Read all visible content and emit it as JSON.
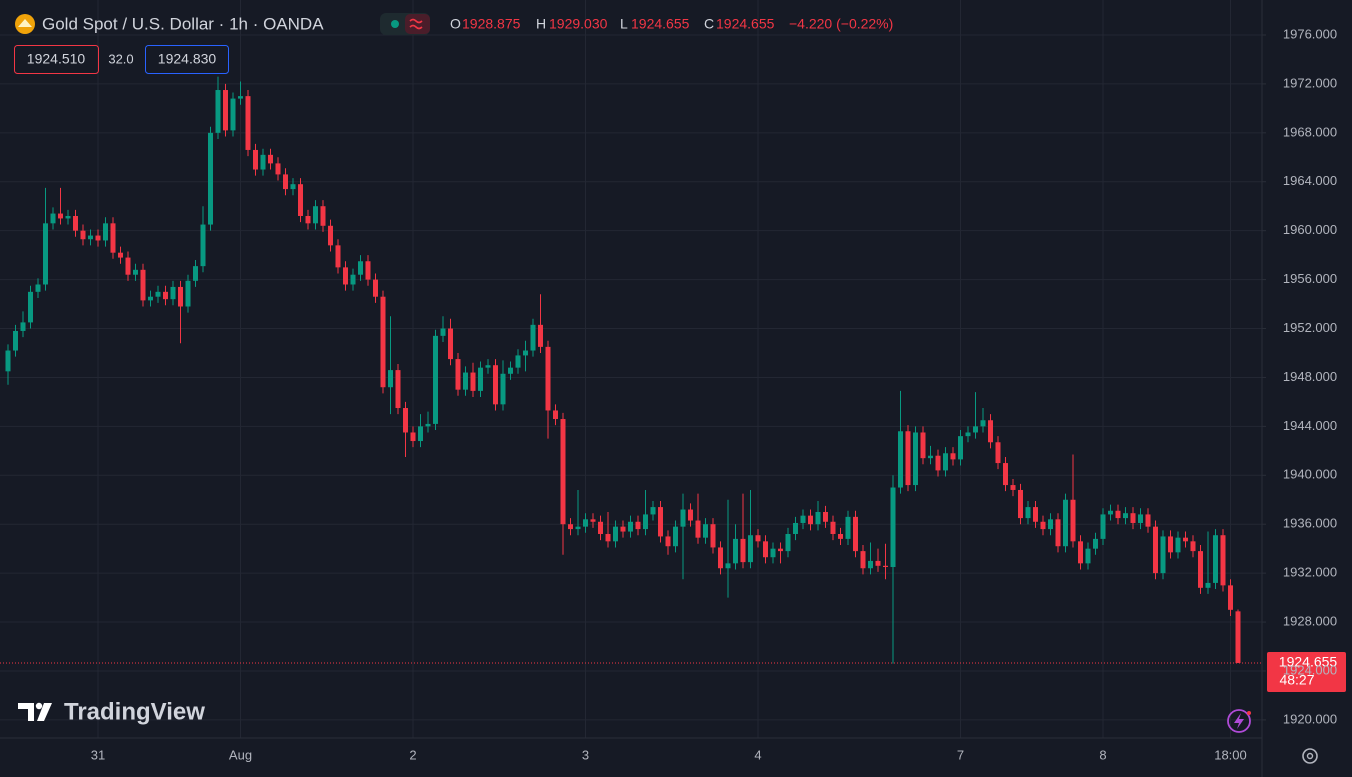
{
  "header": {
    "title": "Gold Spot / U.S. Dollar · 1h · OANDA",
    "ohlc": [
      {
        "key": "O",
        "value": "1928.875"
      },
      {
        "key": "H",
        "value": "1929.030"
      },
      {
        "key": "L",
        "value": "1924.655"
      },
      {
        "key": "C",
        "value": "1924.655"
      }
    ],
    "change": "−4.220 (−0.22%)",
    "sell": "1924.510",
    "spread": "32.0",
    "buy": "1924.830"
  },
  "price_label": {
    "price": "1924.655",
    "countdown": "48:27"
  },
  "logo": "TradingView",
  "chart_data": {
    "type": "candlestick",
    "up_color": "#089981",
    "down_color": "#f23645",
    "grid": true,
    "ylim": [
      1918.52,
      1978.86
    ],
    "yticks": [
      {
        "value": 1920,
        "label": "1920.000"
      },
      {
        "value": 1924,
        "label": "1924.000"
      },
      {
        "value": 1928,
        "label": "1928.000"
      },
      {
        "value": 1932,
        "label": "1932.000"
      },
      {
        "value": 1936,
        "label": "1936.000"
      },
      {
        "value": 1940,
        "label": "1940.000"
      },
      {
        "value": 1944,
        "label": "1944.000"
      },
      {
        "value": 1948,
        "label": "1948.000"
      },
      {
        "value": 1952,
        "label": "1952.000"
      },
      {
        "value": 1956,
        "label": "1956.000"
      },
      {
        "value": 1960,
        "label": "1960.000"
      },
      {
        "value": 1964,
        "label": "1964.000"
      },
      {
        "value": 1968,
        "label": "1968.000"
      },
      {
        "value": 1972,
        "label": "1972.000"
      },
      {
        "value": 1976,
        "label": "1976.000"
      }
    ],
    "last_value": 1924.655,
    "categories": [
      null,
      null,
      null,
      null,
      null,
      null,
      null,
      null,
      null,
      null,
      null,
      null,
      "31",
      null,
      null,
      null,
      null,
      null,
      null,
      null,
      null,
      null,
      null,
      null,
      null,
      null,
      null,
      null,
      null,
      null,
      null,
      "Aug",
      null,
      null,
      null,
      null,
      null,
      null,
      null,
      null,
      null,
      null,
      null,
      null,
      null,
      null,
      null,
      null,
      null,
      null,
      null,
      null,
      null,
      null,
      "2",
      null,
      null,
      null,
      null,
      null,
      null,
      null,
      null,
      null,
      null,
      null,
      null,
      null,
      null,
      null,
      null,
      null,
      null,
      null,
      null,
      null,
      null,
      "3",
      null,
      null,
      null,
      null,
      null,
      null,
      null,
      null,
      null,
      null,
      null,
      null,
      null,
      null,
      null,
      null,
      null,
      null,
      null,
      null,
      null,
      null,
      "4",
      null,
      null,
      null,
      null,
      null,
      null,
      null,
      null,
      null,
      null,
      null,
      null,
      null,
      null,
      null,
      null,
      null,
      null,
      null,
      null,
      null,
      null,
      null,
      null,
      null,
      null,
      "7",
      null,
      null,
      null,
      null,
      null,
      null,
      null,
      null,
      null,
      null,
      null,
      null,
      null,
      null,
      null,
      null,
      null,
      null,
      "8",
      null,
      null,
      null,
      null,
      null,
      null,
      null,
      null,
      null,
      null,
      null,
      null,
      null,
      null,
      null,
      null,
      "18:00",
      null
    ],
    "open": [
      1948.5,
      1950.2,
      1951.8,
      1952.5,
      1955.0,
      1955.6,
      1960.6,
      1961.4,
      1961.0,
      1961.2,
      1960.0,
      1959.3,
      1959.6,
      1959.2,
      1960.6,
      1958.2,
      1957.8,
      1956.4,
      1956.8,
      1954.3,
      1954.6,
      1955.0,
      1954.4,
      1955.4,
      1953.8,
      1955.9,
      1957.1,
      1960.5,
      1968.0,
      1971.5,
      1968.2,
      1970.8,
      1971.0,
      1966.6,
      1965.0,
      1966.2,
      1965.5,
      1964.6,
      1963.4,
      1963.8,
      1961.2,
      1960.6,
      1962.0,
      1960.4,
      1958.8,
      1957.0,
      1955.6,
      1956.4,
      1957.5,
      1956.0,
      1954.6,
      1947.2,
      1948.6,
      1945.5,
      1943.5,
      1942.8,
      1944.0,
      1944.2,
      1951.4,
      1952.0,
      1949.5,
      1947.0,
      1948.4,
      1946.9,
      1948.8,
      1949.0,
      1945.8,
      1948.3,
      1948.8,
      1949.8,
      1950.2,
      1952.3,
      1950.5,
      1945.3,
      1944.6,
      1936.0,
      1935.6,
      1935.8,
      1936.4,
      1936.2,
      1935.2,
      1934.6,
      1935.8,
      1935.4,
      1936.2,
      1935.6,
      1936.8,
      1937.4,
      1935.0,
      1934.2,
      1935.8,
      1937.2,
      1936.3,
      1934.9,
      1936.0,
      1934.1,
      1932.4,
      1932.8,
      1934.8,
      1932.9,
      1935.1,
      1934.6,
      1933.3,
      1934.0,
      1933.8,
      1935.2,
      1936.1,
      1936.7,
      1936.0,
      1937.0,
      1936.2,
      1935.2,
      1934.8,
      1936.6,
      1933.8,
      1932.4,
      1933.0,
      1932.6,
      1932.5,
      1939.0,
      1943.6,
      1939.2,
      1943.5,
      1941.4,
      1941.6,
      1940.4,
      1941.8,
      1941.3,
      1943.2,
      1943.5,
      1944.0,
      1944.5,
      1942.7,
      1941.0,
      1939.2,
      1938.8,
      1936.5,
      1937.4,
      1936.2,
      1935.6,
      1936.4,
      1934.2,
      1938.0,
      1934.6,
      1932.8,
      1934.0,
      1934.8,
      1936.8,
      1937.1,
      1936.5,
      1936.9,
      1936.1,
      1936.8,
      1935.8,
      1932.0,
      1935.0,
      1933.7,
      1934.9,
      1934.6,
      1933.8,
      1930.8,
      1931.2,
      1935.1,
      1931.0,
      1928.875
    ],
    "high": [
      1950.7,
      1952.3,
      1953.4,
      1955.5,
      1956.1,
      1963.5,
      1961.9,
      1963.5,
      1961.7,
      1961.7,
      1960.5,
      1960.1,
      1960.1,
      1961.1,
      1961.1,
      1958.7,
      1958.3,
      1957.3,
      1957.3,
      1955.1,
      1955.5,
      1955.5,
      1955.9,
      1955.9,
      1956.4,
      1957.6,
      1962.0,
      1968.5,
      1972.6,
      1972.0,
      1971.3,
      1972.2,
      1971.5,
      1967.1,
      1966.7,
      1966.7,
      1966.0,
      1965.1,
      1964.3,
      1964.3,
      1961.7,
      1962.5,
      1962.5,
      1960.9,
      1959.3,
      1957.5,
      1956.9,
      1958.0,
      1958.0,
      1956.5,
      1955.1,
      1953.0,
      1949.1,
      1946.0,
      1944.0,
      1945.0,
      1945.2,
      1951.9,
      1953.0,
      1952.8,
      1950.0,
      1948.9,
      1949.2,
      1949.3,
      1949.5,
      1949.5,
      1949.4,
      1949.3,
      1950.3,
      1951.0,
      1952.8,
      1954.8,
      1951.0,
      1945.8,
      1945.1,
      1936.5,
      1938.8,
      1936.9,
      1936.9,
      1936.7,
      1937.0,
      1936.3,
      1936.3,
      1936.7,
      1936.7,
      1938.8,
      1937.9,
      1937.9,
      1935.5,
      1936.3,
      1938.5,
      1937.7,
      1938.5,
      1936.5,
      1936.5,
      1934.6,
      1938.0,
      1936.0,
      1938.5,
      1938.8,
      1935.6,
      1935.1,
      1934.5,
      1934.5,
      1935.7,
      1936.6,
      1937.2,
      1937.2,
      1937.9,
      1937.5,
      1936.7,
      1935.7,
      1937.1,
      1937.1,
      1934.3,
      1934.5,
      1934.0,
      1934.4,
      1940.0,
      1946.9,
      1944.1,
      1944.0,
      1944.0,
      1942.4,
      1942.1,
      1942.3,
      1942.3,
      1943.7,
      1944.0,
      1946.8,
      1945.5,
      1945.0,
      1943.2,
      1941.5,
      1939.7,
      1939.3,
      1937.9,
      1937.9,
      1936.7,
      1936.9,
      1936.9,
      1938.5,
      1941.7,
      1935.1,
      1934.5,
      1935.3,
      1937.3,
      1937.6,
      1937.6,
      1937.4,
      1937.4,
      1937.3,
      1937.3,
      1936.3,
      1935.5,
      1935.5,
      1935.4,
      1935.4,
      1935.1,
      1934.3,
      1935.4,
      1935.6,
      1935.6,
      1931.5,
      1929.03
    ],
    "low": [
      1947.4,
      1949.7,
      1951.3,
      1952.0,
      1954.5,
      1955.1,
      1960.1,
      1960.5,
      1960.5,
      1959.5,
      1958.8,
      1958.8,
      1958.7,
      1958.7,
      1957.7,
      1957.3,
      1955.9,
      1955.9,
      1953.8,
      1953.8,
      1954.1,
      1953.9,
      1953.9,
      1950.8,
      1953.3,
      1955.4,
      1956.6,
      1960.0,
      1967.5,
      1967.7,
      1967.7,
      1970.3,
      1966.1,
      1964.5,
      1964.5,
      1965.0,
      1964.1,
      1962.9,
      1962.9,
      1960.7,
      1960.1,
      1960.1,
      1959.9,
      1958.3,
      1956.5,
      1955.1,
      1955.1,
      1955.9,
      1955.5,
      1954.1,
      1946.7,
      1945.0,
      1945.0,
      1941.5,
      1942.3,
      1942.3,
      1943.5,
      1943.7,
      1950.9,
      1949.0,
      1946.5,
      1946.5,
      1946.4,
      1946.4,
      1948.3,
      1945.3,
      1945.3,
      1947.8,
      1948.3,
      1948.5,
      1949.7,
      1950.0,
      1943.0,
      1944.1,
      1933.5,
      1935.1,
      1935.1,
      1935.3,
      1935.7,
      1934.7,
      1934.1,
      1934.1,
      1934.9,
      1934.9,
      1935.1,
      1935.1,
      1936.3,
      1934.5,
      1933.5,
      1933.7,
      1931.5,
      1935.8,
      1934.4,
      1934.4,
      1933.6,
      1931.9,
      1930.0,
      1932.3,
      1932.4,
      1932.4,
      1934.1,
      1932.8,
      1932.8,
      1932.8,
      1933.3,
      1934.7,
      1935.6,
      1935.5,
      1935.5,
      1935.7,
      1934.7,
      1934.3,
      1934.3,
      1933.3,
      1931.9,
      1931.9,
      1932.1,
      1931.5,
      1924.6,
      1938.5,
      1938.7,
      1938.7,
      1940.9,
      1940.9,
      1939.9,
      1939.9,
      1940.8,
      1940.8,
      1942.7,
      1943.0,
      1943.5,
      1942.2,
      1940.5,
      1938.7,
      1938.3,
      1936.0,
      1936.0,
      1935.7,
      1935.1,
      1935.1,
      1933.7,
      1933.7,
      1934.1,
      1932.3,
      1932.3,
      1933.5,
      1934.3,
      1936.3,
      1936.0,
      1936.0,
      1935.6,
      1935.6,
      1935.3,
      1931.5,
      1931.5,
      1933.2,
      1933.2,
      1934.1,
      1933.3,
      1930.3,
      1930.3,
      1930.7,
      1930.5,
      1928.5,
      1924.655
    ],
    "close": [
      1950.2,
      1951.8,
      1952.5,
      1955.0,
      1955.6,
      1960.6,
      1961.4,
      1961.0,
      1961.2,
      1960.0,
      1959.3,
      1959.6,
      1959.2,
      1960.6,
      1958.2,
      1957.8,
      1956.4,
      1956.8,
      1954.3,
      1954.6,
      1955.0,
      1954.4,
      1955.4,
      1953.8,
      1955.9,
      1957.1,
      1960.5,
      1968.0,
      1971.5,
      1968.2,
      1970.8,
      1971.0,
      1966.6,
      1965.0,
      1966.2,
      1965.5,
      1964.6,
      1963.4,
      1963.8,
      1961.2,
      1960.6,
      1962.0,
      1960.4,
      1958.8,
      1957.0,
      1955.6,
      1956.4,
      1957.5,
      1956.0,
      1954.6,
      1947.2,
      1948.6,
      1945.5,
      1943.5,
      1942.8,
      1944.0,
      1944.2,
      1951.4,
      1952.0,
      1949.5,
      1947.0,
      1948.4,
      1946.9,
      1948.8,
      1949.0,
      1945.8,
      1948.3,
      1948.8,
      1949.8,
      1950.2,
      1952.3,
      1950.5,
      1945.3,
      1944.6,
      1936.0,
      1935.6,
      1935.8,
      1936.4,
      1936.2,
      1935.2,
      1934.6,
      1935.8,
      1935.4,
      1936.2,
      1935.6,
      1936.8,
      1937.4,
      1935.0,
      1934.2,
      1935.8,
      1937.2,
      1936.3,
      1934.9,
      1936.0,
      1934.1,
      1932.4,
      1932.8,
      1934.8,
      1932.9,
      1935.1,
      1934.6,
      1933.3,
      1934.0,
      1933.8,
      1935.2,
      1936.1,
      1936.7,
      1936.0,
      1937.0,
      1936.2,
      1935.2,
      1934.8,
      1936.6,
      1933.8,
      1932.4,
      1933.0,
      1932.6,
      1932.5,
      1939.0,
      1943.6,
      1939.2,
      1943.5,
      1941.4,
      1941.6,
      1940.4,
      1941.8,
      1941.3,
      1943.2,
      1943.5,
      1944.0,
      1944.5,
      1942.7,
      1941.0,
      1939.2,
      1938.8,
      1936.5,
      1937.4,
      1936.2,
      1935.6,
      1936.4,
      1934.2,
      1938.0,
      1934.6,
      1932.8,
      1934.0,
      1934.8,
      1936.8,
      1937.1,
      1936.5,
      1936.9,
      1936.1,
      1936.8,
      1935.8,
      1932.0,
      1935.0,
      1933.7,
      1934.9,
      1934.6,
      1933.8,
      1930.8,
      1931.2,
      1935.1,
      1931.0,
      1929.0,
      1924.655
    ]
  }
}
